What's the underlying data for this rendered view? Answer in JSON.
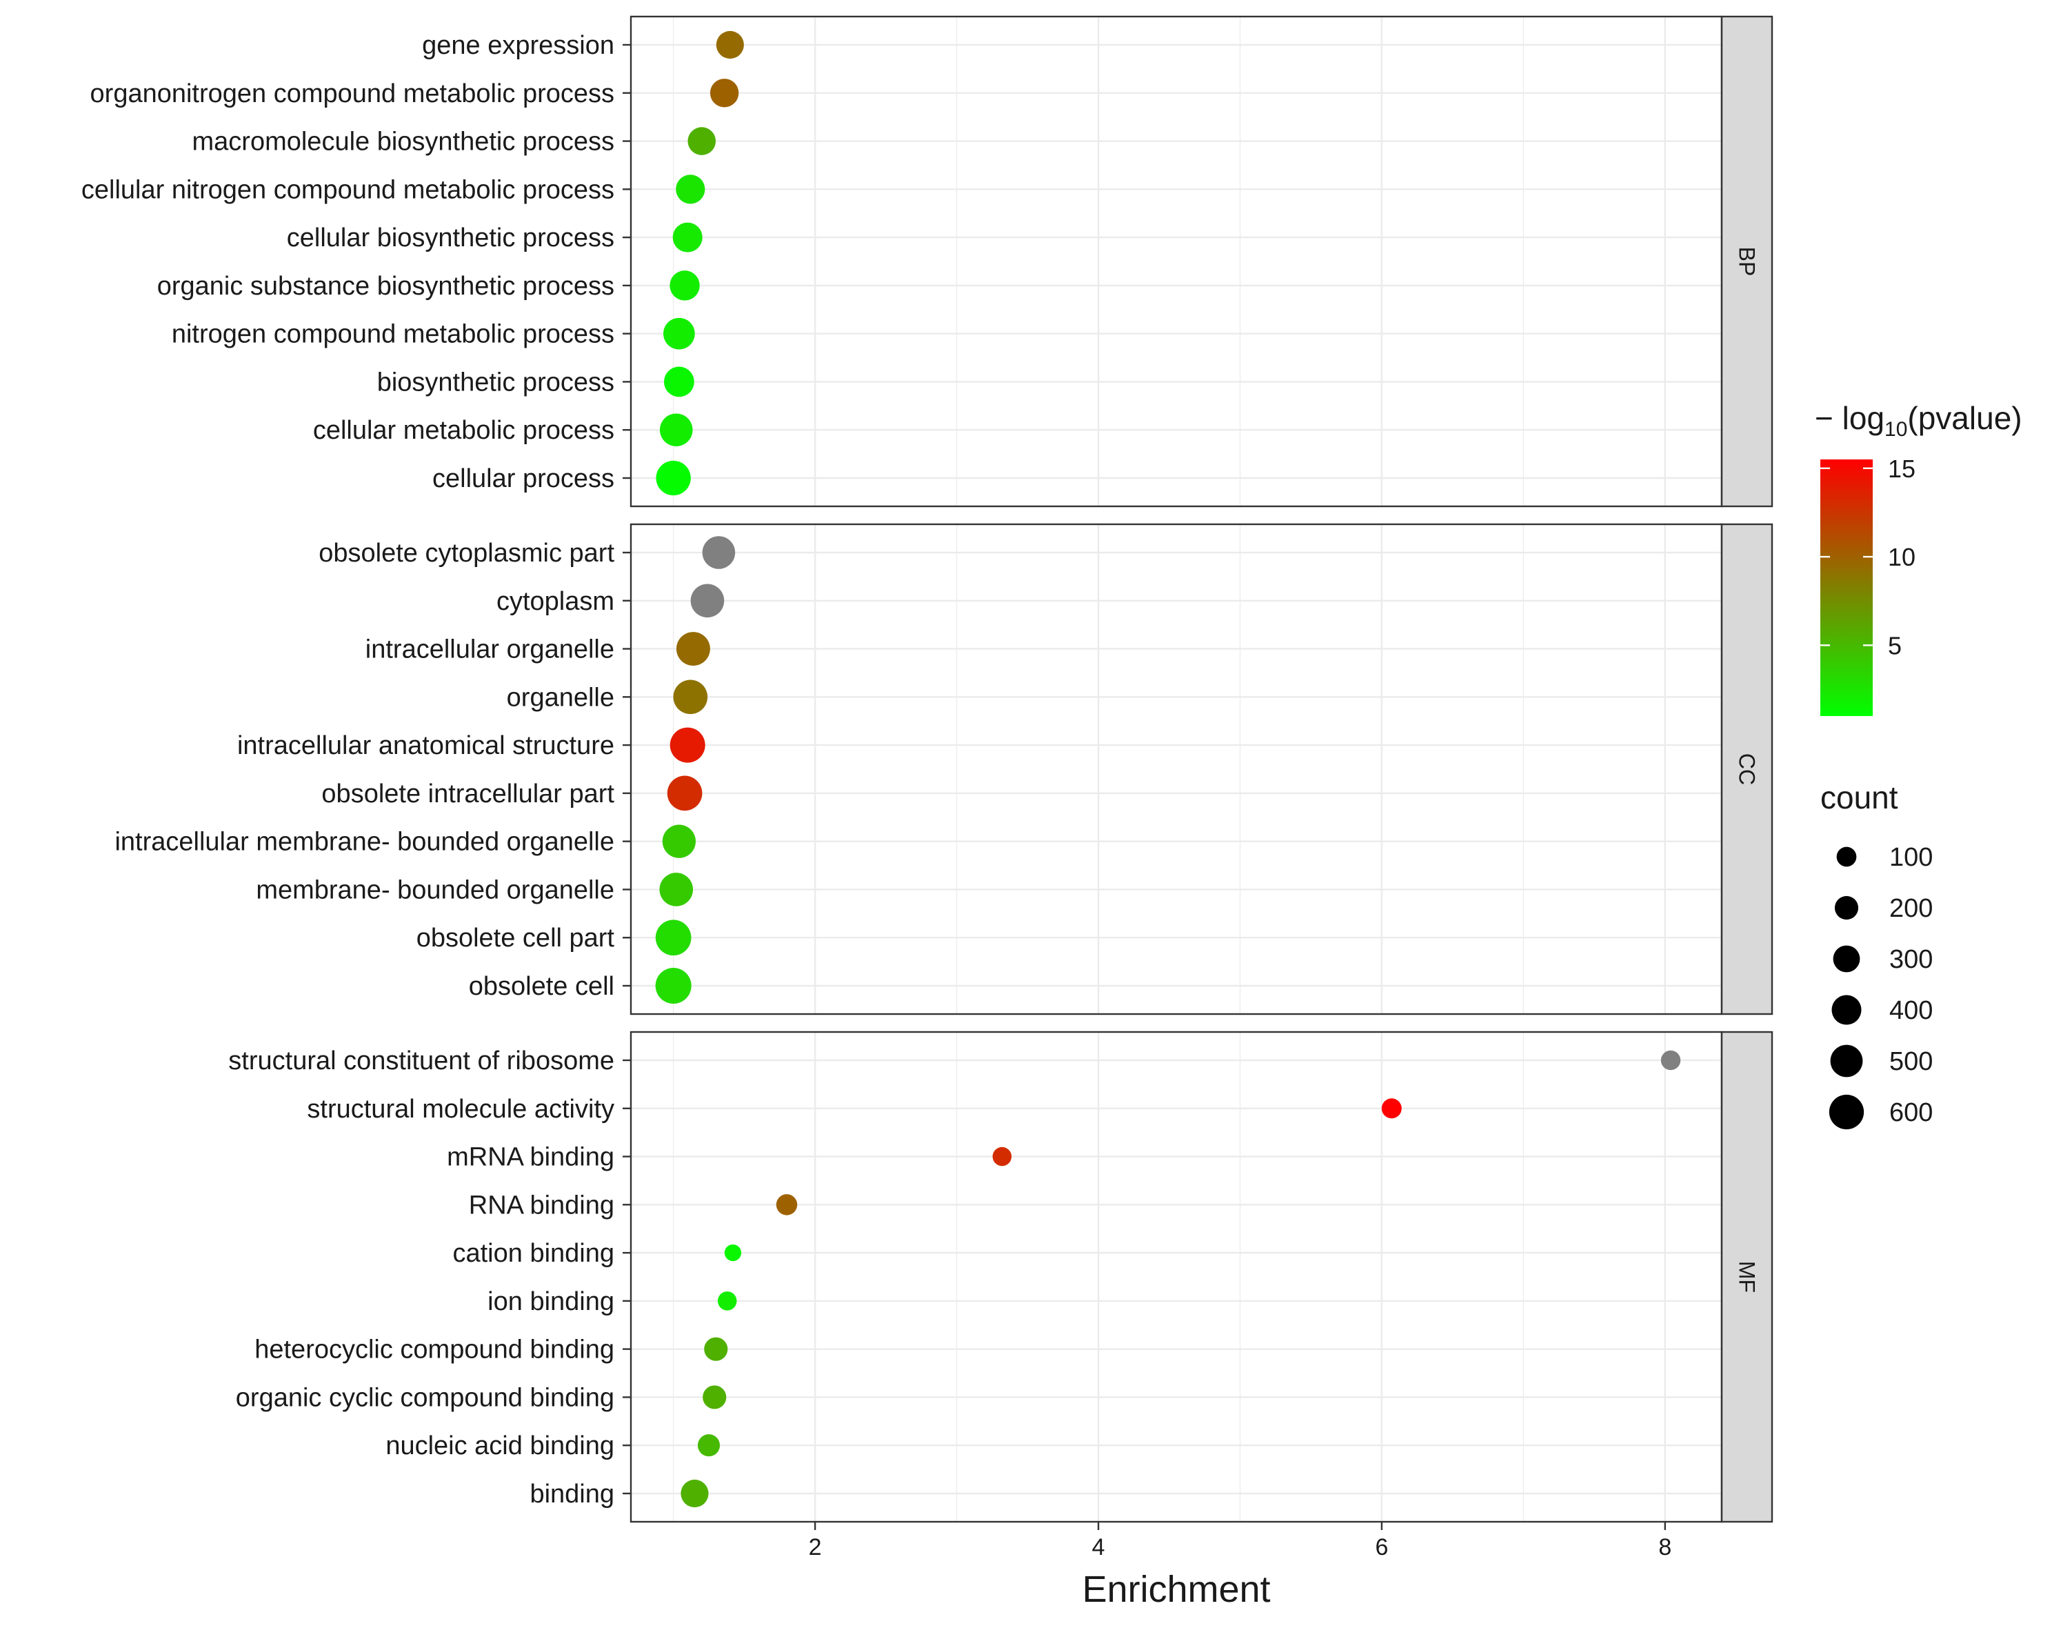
{
  "chart_data": {
    "type": "scatter",
    "xlabel": "Enrichment",
    "ylabel": "",
    "xlim": [
      0.7,
      8.4
    ],
    "x_ticks": [
      2,
      4,
      6,
      8
    ],
    "grid": true,
    "color_legend": {
      "title": "− log10(pvalue)",
      "title_parts": {
        "prefix": "− log",
        "subscript": "10",
        "suffix": "(pvalue)"
      },
      "min": 1,
      "max": 15.5,
      "ticks": [
        5,
        10,
        15
      ],
      "colors": [
        "#00ff00",
        "#ff0000"
      ]
    },
    "size_legend": {
      "title": "count",
      "values": [
        100,
        200,
        300,
        400,
        500,
        600
      ]
    },
    "na_color": "#808080",
    "panels": [
      {
        "name": "BP",
        "terms": [
          {
            "term": "gene expression",
            "enrichment": 1.4,
            "neg_log10_p": 9.5,
            "count": 330
          },
          {
            "term": "organonitrogen compound metabolic process",
            "enrichment": 1.36,
            "neg_log10_p": 10.0,
            "count": 360
          },
          {
            "term": "macromolecule biosynthetic process",
            "enrichment": 1.2,
            "neg_log10_p": 5.5,
            "count": 340
          },
          {
            "term": "cellular nitrogen compound metabolic process",
            "enrichment": 1.12,
            "neg_log10_p": 2.5,
            "count": 380
          },
          {
            "term": "cellular biosynthetic process",
            "enrichment": 1.1,
            "neg_log10_p": 2.2,
            "count": 400
          },
          {
            "term": "organic substance biosynthetic process",
            "enrichment": 1.08,
            "neg_log10_p": 2.0,
            "count": 410
          },
          {
            "term": "nitrogen compound metabolic process",
            "enrichment": 1.04,
            "neg_log10_p": 2.0,
            "count": 470
          },
          {
            "term": "biosynthetic process",
            "enrichment": 1.04,
            "neg_log10_p": 1.5,
            "count": 420
          },
          {
            "term": "cellular metabolic process",
            "enrichment": 1.02,
            "neg_log10_p": 2.0,
            "count": 520
          },
          {
            "term": "cellular process",
            "enrichment": 1.0,
            "neg_log10_p": 1.2,
            "count": 600
          }
        ]
      },
      {
        "name": "CC",
        "terms": [
          {
            "term": "obsolete cytoplasmic part",
            "enrichment": 1.32,
            "neg_log10_p": null,
            "count": 520
          },
          {
            "term": "cytoplasm",
            "enrichment": 1.24,
            "neg_log10_p": null,
            "count": 550
          },
          {
            "term": "intracellular organelle",
            "enrichment": 1.14,
            "neg_log10_p": 9.5,
            "count": 560
          },
          {
            "term": "organelle",
            "enrichment": 1.12,
            "neg_log10_p": 9.0,
            "count": 580
          },
          {
            "term": "intracellular anatomical structure",
            "enrichment": 1.1,
            "neg_log10_p": 14.0,
            "count": 620
          },
          {
            "term": "obsolete intracellular part",
            "enrichment": 1.08,
            "neg_log10_p": 13.0,
            "count": 610
          },
          {
            "term": "intracellular membrane- bounded organelle",
            "enrichment": 1.04,
            "neg_log10_p": 4.0,
            "count": 540
          },
          {
            "term": "membrane- bounded organelle",
            "enrichment": 1.02,
            "neg_log10_p": 4.0,
            "count": 550
          },
          {
            "term": "obsolete cell part",
            "enrichment": 1.0,
            "neg_log10_p": 3.0,
            "count": 640
          },
          {
            "term": "obsolete cell",
            "enrichment": 1.0,
            "neg_log10_p": 3.0,
            "count": 650
          }
        ]
      },
      {
        "name": "MF",
        "terms": [
          {
            "term": "structural constituent of ribosome",
            "enrichment": 8.04,
            "neg_log10_p": null,
            "count": 95
          },
          {
            "term": "structural molecule activity",
            "enrichment": 6.07,
            "neg_log10_p": 15.5,
            "count": 105
          },
          {
            "term": "mRNA binding",
            "enrichment": 3.32,
            "neg_log10_p": 13.0,
            "count": 80
          },
          {
            "term": "RNA binding",
            "enrichment": 1.8,
            "neg_log10_p": 10.0,
            "count": 130
          },
          {
            "term": "cation binding",
            "enrichment": 1.42,
            "neg_log10_p": 1.5,
            "count": 30
          },
          {
            "term": "ion binding",
            "enrichment": 1.38,
            "neg_log10_p": 2.0,
            "count": 80
          },
          {
            "term": "heterocyclic compound binding",
            "enrichment": 1.3,
            "neg_log10_p": 5.5,
            "count": 200
          },
          {
            "term": "organic cyclic compound binding",
            "enrichment": 1.29,
            "neg_log10_p": 5.5,
            "count": 200
          },
          {
            "term": "nucleic acid binding",
            "enrichment": 1.25,
            "neg_log10_p": 5.0,
            "count": 160
          },
          {
            "term": "binding",
            "enrichment": 1.15,
            "neg_log10_p": 5.5,
            "count": 330
          }
        ]
      }
    ]
  }
}
